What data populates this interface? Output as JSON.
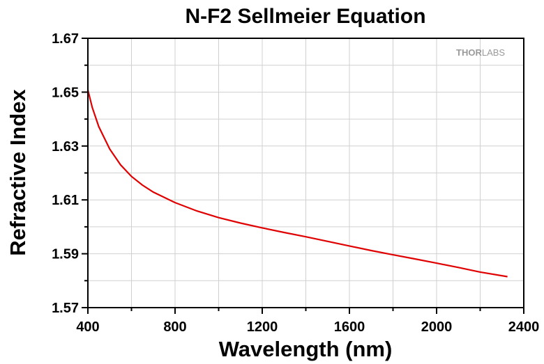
{
  "chart_data": {
    "type": "line",
    "title": "N-F2 Sellmeier Equation",
    "xlabel": "Wavelength (nm)",
    "ylabel": "Refractive Index",
    "xlim": [
      400,
      2400
    ],
    "ylim": [
      1.57,
      1.67
    ],
    "xticks": [
      "400",
      "800",
      "1200",
      "1600",
      "2000",
      "2400"
    ],
    "yticks": [
      "1.57",
      "1.59",
      "1.61",
      "1.63",
      "1.65",
      "1.67"
    ],
    "grid": true,
    "series_color": "#e00000",
    "series": [
      {
        "x": [
          400,
          420,
          450,
          500,
          550,
          600,
          650,
          700,
          800,
          900,
          1000,
          1100,
          1200,
          1300,
          1400,
          1500,
          1600,
          1700,
          1800,
          1900,
          2000,
          2100,
          2200,
          2325
        ],
        "y": [
          1.6508,
          1.6443,
          1.6372,
          1.6289,
          1.623,
          1.6187,
          1.6155,
          1.6129,
          1.609,
          1.6059,
          1.6034,
          1.6014,
          1.5996,
          1.5979,
          1.5963,
          1.5946,
          1.5929,
          1.5912,
          1.5896,
          1.5881,
          1.5865,
          1.5849,
          1.5832,
          1.5815
        ]
      }
    ]
  },
  "logo": {
    "text_bold": "THOR",
    "text_light": "LABS"
  }
}
